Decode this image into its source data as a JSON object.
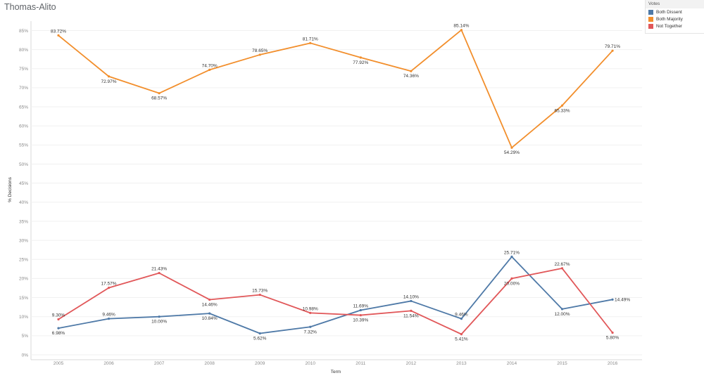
{
  "title": "Thomas-Alito",
  "legend": {
    "title": "Votes",
    "items": [
      {
        "label": "Both Dissent",
        "color": "#4e79a7"
      },
      {
        "label": "Both Majority",
        "color": "#f28e2b"
      },
      {
        "label": "Not Together",
        "color": "#e15759"
      }
    ]
  },
  "chart_data": {
    "type": "line",
    "title": "Thomas-Alito",
    "xlabel": "Term",
    "ylabel": "% Decisions",
    "x": [
      "2005",
      "2006",
      "2007",
      "2008",
      "2009",
      "2010",
      "2011",
      "2012",
      "2013",
      "2014",
      "2015",
      "2016"
    ],
    "y_ticks": [
      "0%",
      "5%",
      "10%",
      "15%",
      "20%",
      "25%",
      "30%",
      "35%",
      "40%",
      "45%",
      "50%",
      "55%",
      "60%",
      "65%",
      "70%",
      "75%",
      "80%",
      "85%"
    ],
    "ylim": [
      0,
      88
    ],
    "grid": true,
    "legend_position": "top-right",
    "series": [
      {
        "name": "Both Dissent",
        "color": "#4e79a7",
        "values": [
          6.98,
          9.46,
          10.0,
          10.84,
          5.62,
          7.32,
          11.69,
          14.1,
          9.46,
          25.71,
          12.0,
          14.49
        ],
        "labels": [
          "6.98%",
          "9.46%",
          "10.00%",
          "10.84%",
          "5.62%",
          "7.32%",
          "11.69%",
          "14.10%",
          "9.46%",
          "25.71%",
          "12.00%",
          "14.49%"
        ]
      },
      {
        "name": "Both Majority",
        "color": "#f28e2b",
        "values": [
          83.72,
          72.97,
          68.57,
          74.7,
          78.65,
          81.71,
          77.92,
          74.36,
          85.14,
          54.29,
          65.33,
          79.71
        ],
        "labels": [
          "83.72%",
          "72.97%",
          "68.57%",
          "74.70%",
          "78.65%",
          "81.71%",
          "77.92%",
          "74.36%",
          "85.14%",
          "54.29%",
          "65.33%",
          "79.71%"
        ]
      },
      {
        "name": "Not Together",
        "color": "#e15759",
        "values": [
          9.3,
          17.57,
          21.43,
          14.46,
          15.73,
          10.98,
          10.39,
          11.54,
          5.41,
          20.0,
          22.67,
          5.8
        ],
        "labels": [
          "9.30%",
          "17.57%",
          "21.43%",
          "14.46%",
          "15.73%",
          "10.98%",
          "10.39%",
          "11.54%",
          "5.41%",
          "20.00%",
          "22.67%",
          "5.80%"
        ]
      }
    ]
  }
}
